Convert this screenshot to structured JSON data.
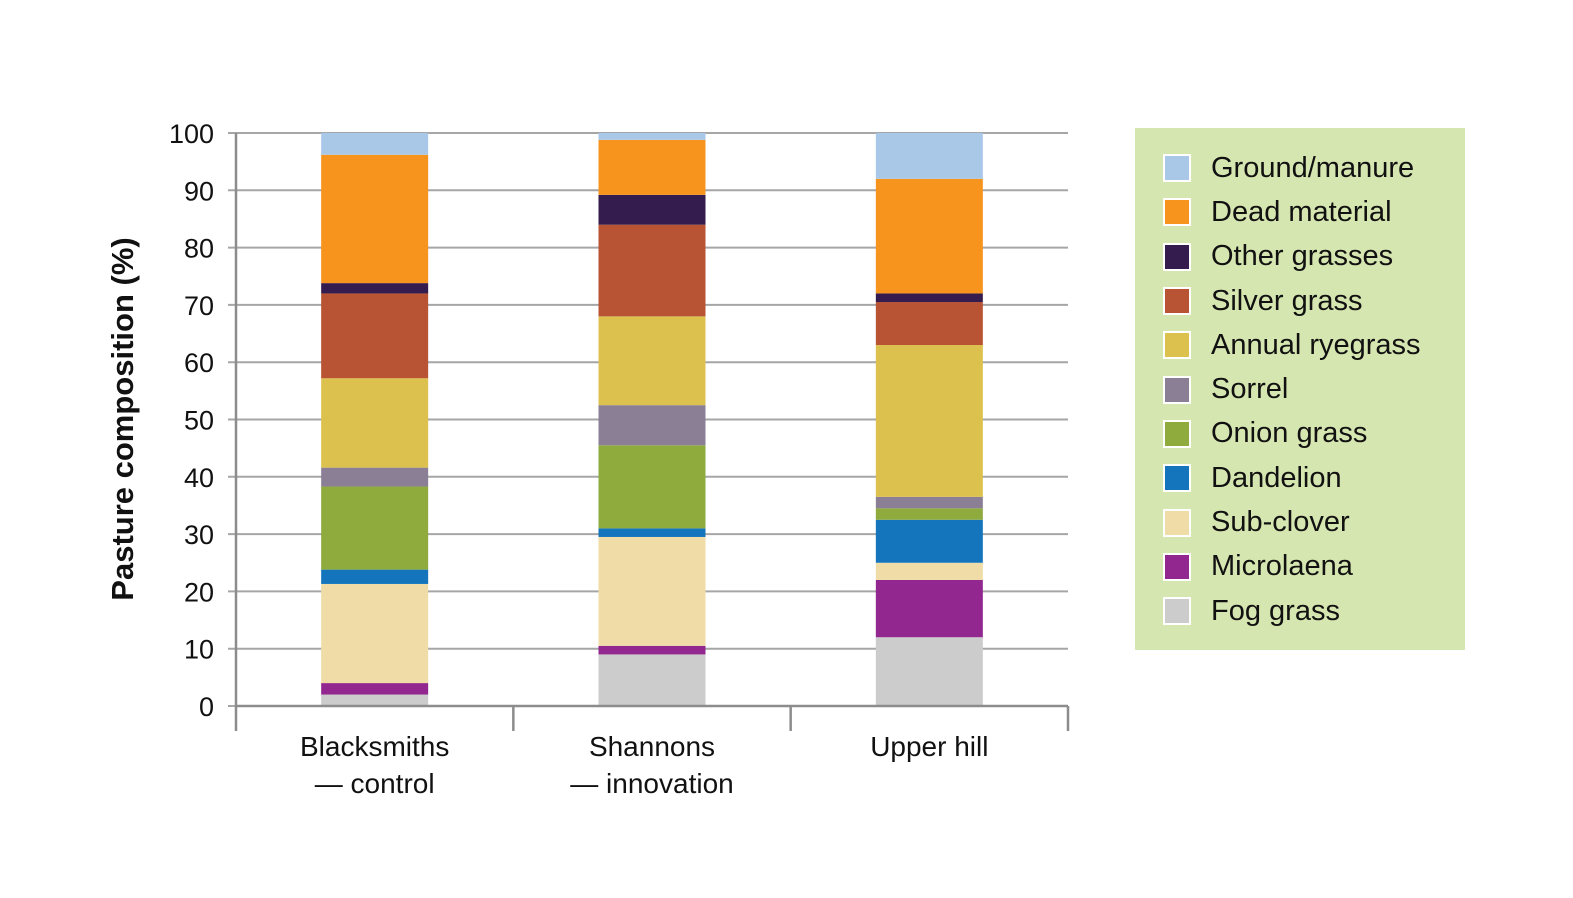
{
  "chart_data": {
    "type": "bar",
    "stacked": true,
    "ylabel": "Pasture composition (%)",
    "ylim": [
      0,
      100
    ],
    "yticks": [
      0,
      10,
      20,
      30,
      40,
      50,
      60,
      70,
      80,
      90,
      100
    ],
    "grid": true,
    "legend_position": "right",
    "categories": [
      [
        "Blacksmiths",
        "— control"
      ],
      [
        "Shannons",
        "— innovation"
      ],
      [
        "Upper hill"
      ]
    ],
    "series": [
      {
        "name": "Fog grass",
        "color": "#cdcccd",
        "values": [
          2.0,
          9.0,
          12.0
        ]
      },
      {
        "name": "Microlaena",
        "color": "#92278f",
        "values": [
          2.0,
          1.5,
          10.0
        ]
      },
      {
        "name": "Sub-clover",
        "color": "#efdca6",
        "values": [
          17.3,
          19.0,
          3.0
        ]
      },
      {
        "name": "Dandelion",
        "color": "#1475bc",
        "values": [
          2.5,
          1.5,
          7.5
        ]
      },
      {
        "name": "Onion grass",
        "color": "#8fab3e",
        "values": [
          14.5,
          14.5,
          2.0
        ]
      },
      {
        "name": "Sorrel",
        "color": "#8b7f95",
        "values": [
          3.3,
          7.0,
          2.0
        ]
      },
      {
        "name": "Annual ryegrass",
        "color": "#dcc14f",
        "values": [
          15.6,
          15.5,
          26.5
        ]
      },
      {
        "name": "Silver grass",
        "color": "#b85333",
        "values": [
          14.8,
          16.0,
          7.5
        ]
      },
      {
        "name": "Other grasses",
        "color": "#351c4e",
        "values": [
          1.8,
          5.2,
          1.5
        ]
      },
      {
        "name": "Dead material",
        "color": "#f7941e",
        "values": [
          22.4,
          9.6,
          20.0
        ]
      },
      {
        "name": "Ground/manure",
        "color": "#a9c8e8",
        "values": [
          3.8,
          1.2,
          8.0
        ]
      }
    ]
  }
}
